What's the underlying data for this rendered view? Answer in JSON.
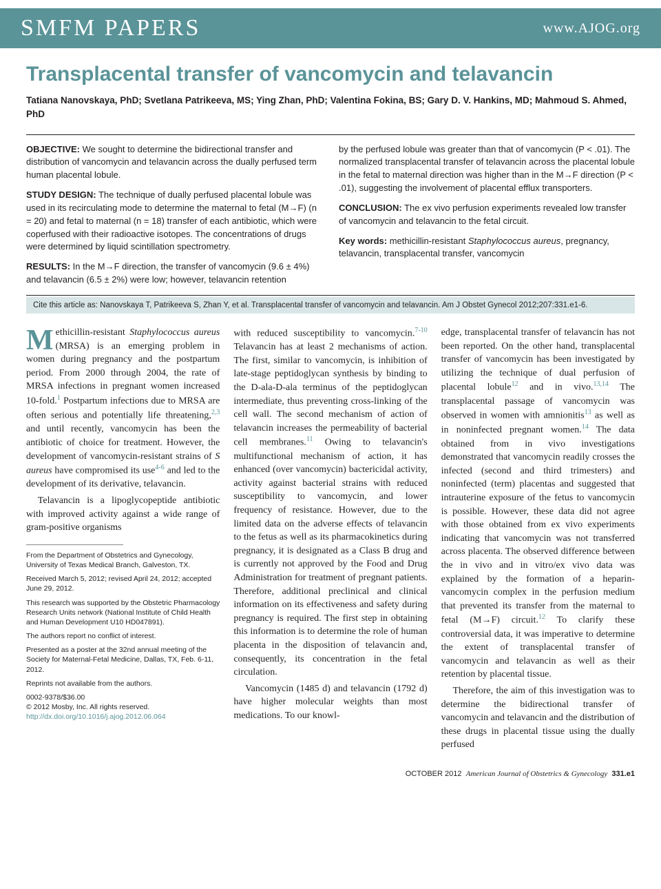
{
  "header": {
    "section": "SMFM PAPERS",
    "url": "www.AJOG.org"
  },
  "title": "Transplacental transfer of vancomycin and telavancin",
  "authors": "Tatiana Nanovskaya, PhD; Svetlana Patrikeeva, MS; Ying Zhan, PhD; Valentina Fokina, BS; Gary D. V. Hankins, MD; Mahmoud S. Ahmed, PhD",
  "abstract": {
    "objective_label": "OBJECTIVE:",
    "objective": " We sought to determine the bidirectional transfer and distribution of vancomycin and telavancin across the dually perfused term human placental lobule.",
    "design_label": "STUDY DESIGN:",
    "design": " The technique of dually perfused placental lobule was used in its recirculating mode to determine the maternal to fetal (M→F) (n = 20) and fetal to maternal (n = 18) transfer of each antibiotic, which were coperfused with their radioactive isotopes. The concentrations of drugs were determined by liquid scintillation spectrometry.",
    "results_label": "RESULTS:",
    "results": " In the M→F direction, the transfer of vancomycin (9.6 ± 4%) and telavancin (6.5 ± 2%) were low; however, telavancin retention",
    "results_cont": "by the perfused lobule was greater than that of vancomycin (P < .01). The normalized transplacental transfer of telavancin across the placental lobule in the fetal to maternal direction was higher than in the M→F direction (P < .01), suggesting the involvement of placental efflux transporters.",
    "conclusion_label": "CONCLUSION:",
    "conclusion": " The ex vivo perfusion experiments revealed low transfer of vancomycin and telavancin to the fetal circuit.",
    "keywords_label": "Key words:",
    "keywords": " methicillin-resistant Staphylococcus aureus, pregnancy, telavancin, transplacental transfer, vancomycin"
  },
  "citation": "Cite this article as: Nanovskaya T, Patrikeeva S, Zhan Y, et al. Transplacental transfer of vancomycin and telavancin. Am J Obstet Gynecol 2012;207:331.e1-6.",
  "body": {
    "col1": {
      "p1a": "ethicillin-resistant ",
      "p1b": "Staphylococcus aureus",
      "p1c": " (MRSA) is an emerging problem in women during pregnancy and the postpartum period. From 2000 through 2004, the rate of MRSA infections in pregnant women increased 10-fold.",
      "p1d": " Postpartum infections due to MRSA are often serious and potentially life threatening,",
      "p1e": " and until recently, vancomycin has been the antibiotic of choice for treatment. However, the development of vancomycin-resistant strains of ",
      "p1f": "S aureus",
      "p1g": " have compromised its use",
      "p1h": " and led to the development of its derivative, telavancin.",
      "p2": "Telavancin is a lipoglycopeptide antibiotic with improved activity against a wide range of gram-positive organisms"
    },
    "col2": {
      "p1a": "with reduced susceptibility to vancomycin.",
      "p1b": " Telavancin has at least 2 mechanisms of action. The first, similar to vancomycin, is inhibition of late-stage peptidoglycan synthesis by binding to the D-ala-D-ala terminus of the peptidoglycan intermediate, thus preventing cross-linking of the cell wall. The second mechanism of action of telavancin increases the permeability of bacterial cell membranes.",
      "p1c": " Owing to telavancin's multifunctional mechanism of action, it has enhanced (over vancomycin) bactericidal activity, activity against bacterial strains with reduced susceptibility to vancomycin, and lower frequency of resistance. However, due to the limited data on the adverse effects of telavancin to the fetus as well as its pharmacokinetics during pregnancy, it is designated as a Class B drug and is currently not approved by the Food and Drug Administration for treatment of pregnant patients. Therefore, additional preclinical and clinical information on its effectiveness and safety during pregnancy is required. The first step in obtaining this information is to determine the role of human placenta in the disposition of telavancin and, consequently, its concentration in the fetal circulation.",
      "p2": "Vancomycin (1485 d) and telavancin (1792 d) have higher molecular weights than most medications. To our knowl-"
    },
    "col3": {
      "p1a": "edge, transplacental transfer of telavancin has not been reported. On the other hand, transplacental transfer of vancomycin has been investigated by utilizing the technique of dual perfusion of placental lobule",
      "p1b": " and in vivo.",
      "p1c": " The transplacental passage of vancomycin was observed in women with amnionitis",
      "p1d": " as well as in noninfected pregnant women.",
      "p1e": " The data obtained from in vivo investigations demonstrated that vancomycin readily crosses the infected (second and third trimesters) and noninfected (term) placentas and suggested that intrauterine exposure of the fetus to vancomycin is possible. However, these data did not agree with those obtained from ex vivo experiments indicating that vancomycin was not transferred across placenta. The observed difference between the in vivo and in vitro/ex vivo data was explained by the formation of a heparin-vancomycin complex in the perfusion medium that prevented its transfer from the maternal to fetal (M→F) circuit.",
      "p1f": " To clarify these controversial data, it was imperative to determine the extent of transplacental transfer of vancomycin and telavancin as well as their retention by placental tissue.",
      "p2": "Therefore, the aim of this investigation was to determine the bidirectional transfer of vancomycin and telavancin and the distribution of these drugs in placental tissue using the dually perfused"
    }
  },
  "affil": {
    "a1": "From the Department of Obstetrics and Gynecology, University of Texas Medical Branch, Galveston, TX.",
    "a2": "Received March 5, 2012; revised April 24, 2012; accepted June 29, 2012.",
    "a3": "This research was supported by the Obstetric Pharmacology Research Units network (National Institute of Child Health and Human Development U10 HD047891).",
    "a4": "The authors report no conflict of interest.",
    "a5": "Presented as a poster at the 32nd annual meeting of the Society for Maternal-Fetal Medicine, Dallas, TX, Feb. 6-11, 2012.",
    "a6": "Reprints not available from the authors.",
    "a7": "0002-9378/$36.00",
    "a8": "© 2012 Mosby, Inc. All rights reserved.",
    "a9": "http://dx.doi.org/10.1016/j.ajog.2012.06.064"
  },
  "refs": {
    "r1": "1",
    "r23": "2,3",
    "r46": "4-6",
    "r710": "7-10",
    "r11": "11",
    "r12": "12",
    "r1314": "13,14",
    "r13": "13",
    "r14": "14"
  },
  "footer": {
    "date": "OCTOBER 2012",
    "journal": "American Journal of Obstetrics & Gynecology",
    "page": "331.e1"
  },
  "colors": {
    "brand": "#5a9398",
    "cite_bg": "#d9e6e7",
    "text": "#231f20"
  }
}
